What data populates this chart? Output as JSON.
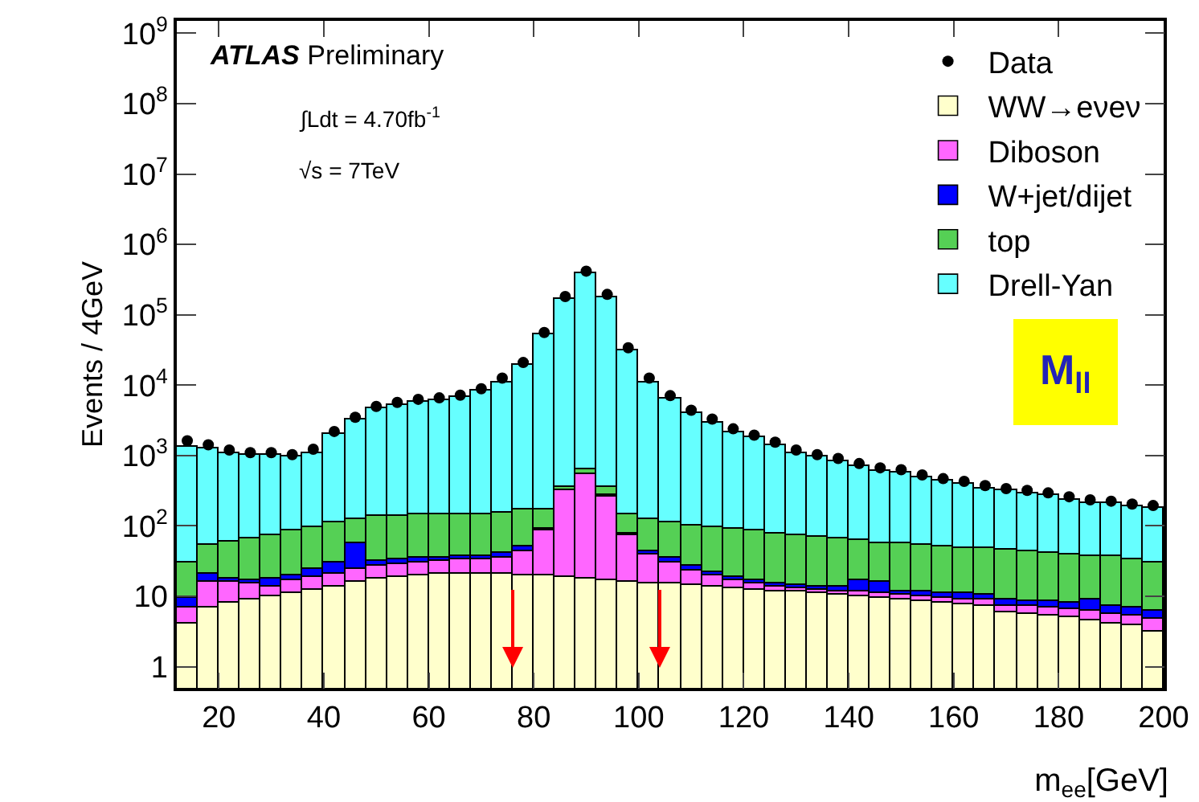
{
  "chart_data": {
    "type": "bar",
    "stacked": true,
    "log": "y",
    "xlabel": "m$_{ee}$[GeV]",
    "ylabel": "Events / 4GeV",
    "x": [
      14,
      18,
      22,
      26,
      30,
      34,
      38,
      42,
      46,
      50,
      54,
      58,
      62,
      66,
      70,
      74,
      78,
      82,
      86,
      90,
      94,
      98,
      102,
      106,
      110,
      114,
      118,
      122,
      126,
      130,
      134,
      138,
      142,
      146,
      150,
      154,
      158,
      162,
      166,
      170,
      174,
      178,
      182,
      186,
      190,
      194,
      198
    ],
    "series": [
      {
        "name": "WW→eνeν",
        "color": "#ffffcc",
        "values": [
          4,
          7,
          8,
          9,
          10,
          11,
          12.5,
          14,
          16,
          17.5,
          19,
          20,
          21,
          21,
          21,
          21,
          20,
          20,
          19,
          18,
          17,
          16,
          15.5,
          15,
          14.5,
          14,
          13,
          12.5,
          12,
          11.5,
          11,
          10.5,
          10,
          9.5,
          9,
          8.5,
          8,
          7.7,
          7.3,
          6,
          5.7,
          5.4,
          5,
          4.6,
          4.2,
          3.8,
          3.2
        ]
      },
      {
        "name": "Diboson",
        "color": "#ff66ff",
        "values": [
          3,
          9,
          8,
          6,
          4,
          6,
          6.5,
          7,
          8,
          9.5,
          10,
          10,
          11,
          13,
          12,
          15,
          23,
          66,
          300,
          520,
          250,
          56,
          23.5,
          15,
          8.5,
          6,
          4,
          2.5,
          2,
          1.5,
          1.5,
          1.5,
          1.5,
          1.5,
          1.5,
          1.5,
          1.5,
          1.5,
          1.5,
          1.5,
          1.5,
          1.5,
          1.5,
          1.5,
          1.5,
          1.5,
          1.5
        ]
      },
      {
        "name": "W+jet/dijet",
        "color": "#0000ff",
        "values": [
          2.7,
          5,
          2,
          2,
          4,
          3,
          5,
          9,
          32,
          5,
          5,
          5,
          4,
          4,
          4,
          6,
          7,
          4,
          5,
          5,
          5,
          4,
          4,
          6,
          4,
          2,
          2,
          2,
          1.5,
          1.5,
          1.5,
          1.5,
          5.5,
          5,
          1.5,
          1.5,
          1.5,
          2,
          1.5,
          1.5,
          1.5,
          1.5,
          1.5,
          3,
          1.5,
          1.5,
          1.5
        ]
      },
      {
        "name": "top",
        "color": "#55d055",
        "values": [
          20,
          34,
          42,
          48,
          57,
          65,
          71,
          80,
          69,
          108,
          106,
          110,
          109,
          112,
          113,
          113,
          118,
          85,
          25,
          95,
          85,
          69,
          79,
          76,
          75,
          73,
          71,
          68,
          64,
          60,
          56,
          52,
          45,
          42,
          44,
          42,
          41,
          38,
          37,
          36,
          35,
          33,
          32,
          28,
          30,
          27,
          24
        ]
      },
      {
        "name": "Drell-Yan",
        "color": "#66ffff",
        "values": [
          1300,
          1200,
          1000,
          940,
          930,
          870,
          1000,
          1900,
          3100,
          4500,
          5200,
          5700,
          6000,
          6600,
          8100,
          11000,
          19000,
          52000,
          170000,
          390000,
          180000,
          31000,
          11000,
          6400,
          3900,
          2900,
          2100,
          1700,
          1300,
          1000,
          880,
          780,
          650,
          560,
          530,
          440,
          380,
          350,
          300,
          270,
          250,
          230,
          200,
          180,
          170,
          160,
          150
        ]
      },
      {
        "name": "Data",
        "type": "scatter",
        "color": "#000000",
        "marker": "circle",
        "values": [
          1620,
          1420,
          1200,
          1100,
          1100,
          1030,
          1230,
          2200,
          3500,
          5000,
          5700,
          6300,
          6600,
          7200,
          8900,
          12600,
          21000,
          56000,
          182000,
          417000,
          195000,
          34000,
          12600,
          7100,
          4400,
          3300,
          2400,
          1950,
          1550,
          1200,
          1030,
          910,
          770,
          670,
          630,
          530,
          470,
          430,
          375,
          340,
          320,
          295,
          260,
          235,
          225,
          205,
          195
        ]
      }
    ],
    "xlim": [
      12,
      200
    ],
    "xticks": [
      20,
      40,
      60,
      80,
      100,
      120,
      140,
      160,
      180,
      200
    ],
    "ylim": [
      0.5,
      1500000000
    ],
    "yticks": [
      1,
      10,
      {
        "value": 100,
        "label": "10$^{2}$"
      },
      {
        "value": 1000,
        "label": "10$^{3}$"
      },
      {
        "value": 10000,
        "label": "10$^{4}$"
      },
      {
        "value": 100000,
        "label": "10$^{5}$"
      },
      {
        "value": 1000000,
        "label": "10$^{6}$"
      },
      {
        "value": 10000000,
        "label": "10$^{7}$"
      },
      {
        "value": 100000000,
        "label": "10$^{8}$"
      },
      {
        "value": 1000000000,
        "label": "10$^{9}$"
      }
    ],
    "ref_lines": [
      {
        "axis": "x",
        "value": 76,
        "color": "#ff0000"
      },
      {
        "axis": "x",
        "value": 104,
        "color": "#ff0000"
      }
    ],
    "annotations": [
      "ATLAS Preliminary",
      "∫Ldt = 4.70fb$^{-1}$",
      "√s = 7TeV",
      "M$_{ll}$"
    ],
    "legend": "top right",
    "grid": false
  }
}
